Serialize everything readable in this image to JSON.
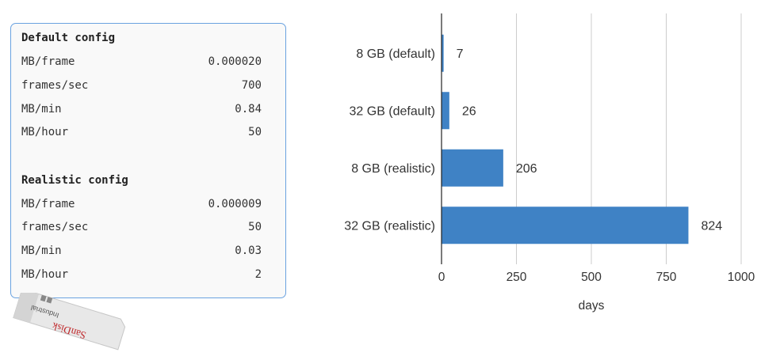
{
  "config_panel": {
    "default": {
      "title": "Default config",
      "rows": [
        {
          "label": "MB/frame",
          "value": "0.000020"
        },
        {
          "label": "frames/sec",
          "value": "700"
        },
        {
          "label": "MB/min",
          "value": "0.84"
        },
        {
          "label": "MB/hour",
          "value": "50"
        }
      ]
    },
    "realistic": {
      "title": "Realistic config",
      "rows": [
        {
          "label": "MB/frame",
          "value": "0.000009"
        },
        {
          "label": "frames/sec",
          "value": "50"
        },
        {
          "label": "MB/min",
          "value": "0.03"
        },
        {
          "label": "MB/hour",
          "value": "2"
        }
      ]
    }
  },
  "sd_card": {
    "brand": "SanDisk",
    "line": "Industrial"
  },
  "chart_data": {
    "type": "bar",
    "orientation": "horizontal",
    "categories": [
      "8 GB (default)",
      "32 GB (default)",
      "8 GB (realistic)",
      "32 GB (realistic)"
    ],
    "values": [
      7,
      26,
      206,
      824
    ],
    "data_labels": [
      "7",
      "26",
      "206",
      "824"
    ],
    "xlabel": "days",
    "xlim": [
      0,
      1000
    ],
    "xticks": [
      0,
      250,
      500,
      750,
      1000
    ],
    "grid": "vertical",
    "colors": {
      "bar": "#3f82c5",
      "grid": "#cccccc",
      "axis": "#222222"
    }
  }
}
